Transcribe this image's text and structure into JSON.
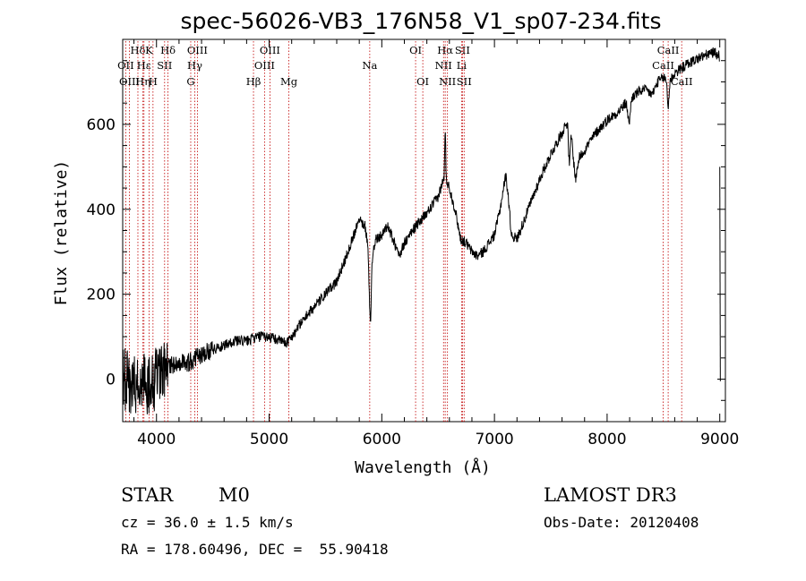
{
  "chart_data": {
    "type": "line",
    "title": "spec-56026-VB3_176N58_V1_sp07-234.fits",
    "xlabel": "Wavelength (Å)",
    "ylabel": "Flux (relative)",
    "xlim": [
      3700,
      9050
    ],
    "ylim": [
      -100,
      800
    ],
    "xticks": [
      4000,
      5000,
      6000,
      7000,
      8000,
      9000
    ],
    "yticks": [
      0,
      200,
      400,
      600
    ],
    "spectrum_knots": [
      [
        3700,
        0
      ],
      [
        3800,
        -10
      ],
      [
        3900,
        -10
      ],
      [
        4000,
        0
      ],
      [
        4100,
        30
      ],
      [
        4200,
        40
      ],
      [
        4300,
        40
      ],
      [
        4400,
        60
      ],
      [
        4500,
        70
      ],
      [
        4600,
        80
      ],
      [
        4700,
        90
      ],
      [
        4800,
        90
      ],
      [
        4900,
        100
      ],
      [
        5000,
        100
      ],
      [
        5100,
        90
      ],
      [
        5150,
        85
      ],
      [
        5200,
        100
      ],
      [
        5300,
        140
      ],
      [
        5400,
        170
      ],
      [
        5500,
        200
      ],
      [
        5600,
        230
      ],
      [
        5700,
        300
      ],
      [
        5750,
        340
      ],
      [
        5800,
        380
      ],
      [
        5850,
        360
      ],
      [
        5890,
        300
      ],
      [
        5900,
        210
      ],
      [
        5920,
        300
      ],
      [
        5950,
        330
      ],
      [
        6000,
        340
      ],
      [
        6050,
        360
      ],
      [
        6100,
        330
      ],
      [
        6150,
        290
      ],
      [
        6200,
        320
      ],
      [
        6300,
        360
      ],
      [
        6400,
        390
      ],
      [
        6500,
        430
      ],
      [
        6560,
        480
      ],
      [
        6600,
        450
      ],
      [
        6650,
        400
      ],
      [
        6700,
        330
      ],
      [
        6750,
        320
      ],
      [
        6800,
        300
      ],
      [
        6850,
        290
      ],
      [
        6900,
        300
      ],
      [
        7000,
        340
      ],
      [
        7050,
        400
      ],
      [
        7080,
        450
      ],
      [
        7100,
        480
      ],
      [
        7120,
        440
      ],
      [
        7150,
        340
      ],
      [
        7200,
        330
      ],
      [
        7300,
        400
      ],
      [
        7400,
        470
      ],
      [
        7500,
        530
      ],
      [
        7600,
        580
      ],
      [
        7650,
        610
      ],
      [
        7680,
        590
      ],
      [
        7700,
        520
      ],
      [
        7720,
        470
      ],
      [
        7750,
        520
      ],
      [
        7800,
        540
      ],
      [
        7900,
        580
      ],
      [
        8000,
        610
      ],
      [
        8100,
        630
      ],
      [
        8200,
        660
      ],
      [
        8300,
        680
      ],
      [
        8350,
        680
      ],
      [
        8400,
        670
      ],
      [
        8450,
        700
      ],
      [
        8500,
        710
      ],
      [
        8550,
        700
      ],
      [
        8600,
        720
      ],
      [
        8700,
        740
      ],
      [
        8800,
        755
      ],
      [
        8900,
        765
      ],
      [
        8950,
        770
      ],
      [
        9000,
        760
      ]
    ],
    "absorption_dips": [
      {
        "center": 5893,
        "width": 12,
        "depth": 110
      },
      {
        "center": 7665,
        "width": 12,
        "depth": 90
      },
      {
        "center": 8195,
        "width": 15,
        "depth": 55
      },
      {
        "center": 8542,
        "width": 10,
        "depth": 60
      }
    ],
    "emission_peaks": [
      {
        "center": 6563,
        "width": 6,
        "height": 100
      }
    ],
    "line_markers": [
      {
        "label": "Hδ",
        "x": 3835,
        "row": 1
      },
      {
        "label": "OII",
        "x": 3727,
        "row": 2
      },
      {
        "label": "OIII",
        "x": 3760,
        "row": 3
      },
      {
        "label": "K",
        "x": 3934,
        "row": 1
      },
      {
        "label": "Hε",
        "x": 3889,
        "row": 2
      },
      {
        "label": "Hη",
        "x": 3880,
        "row": 3
      },
      {
        "label": "Hδ",
        "x": 4102,
        "row": 1
      },
      {
        "label": "SII",
        "x": 4072,
        "row": 2
      },
      {
        "label": "H",
        "x": 3969,
        "row": 3
      },
      {
        "label": "OIII",
        "x": 4363,
        "row": 1
      },
      {
        "label": "Hγ",
        "x": 4340,
        "row": 2
      },
      {
        "label": "G",
        "x": 4304,
        "row": 3
      },
      {
        "label": "OIII",
        "x": 5007,
        "row": 1
      },
      {
        "label": "OIII",
        "x": 4959,
        "row": 2
      },
      {
        "label": "Hβ",
        "x": 4861,
        "row": 3
      },
      {
        "label": "Mg",
        "x": 5175,
        "row": 3
      },
      {
        "label": "Na",
        "x": 5893,
        "row": 2
      },
      {
        "label": "OI",
        "x": 6300,
        "row": 1
      },
      {
        "label": "OI",
        "x": 6364,
        "row": 3
      },
      {
        "label": "Hα",
        "x": 6563,
        "row": 1
      },
      {
        "label": "SII",
        "x": 6716,
        "row": 1
      },
      {
        "label": "NII",
        "x": 6548,
        "row": 2
      },
      {
        "label": "Li",
        "x": 6708,
        "row": 2
      },
      {
        "label": "NII",
        "x": 6583,
        "row": 3
      },
      {
        "label": "SII",
        "x": 6731,
        "row": 3
      },
      {
        "label": "CaII",
        "x": 8542,
        "row": 1
      },
      {
        "label": "CaII",
        "x": 8498,
        "row": 2
      },
      {
        "label": "CaII",
        "x": 8662,
        "row": 3
      }
    ]
  },
  "info": {
    "object_class": "STAR",
    "subclass": "M0",
    "redshift": "cz = 36.0 ± 1.5 km/s",
    "coordinates": "RA = 178.60496, DEC =  55.90418",
    "survey": "LAMOST DR3",
    "obs_date": "Obs-Date: 20120408"
  }
}
